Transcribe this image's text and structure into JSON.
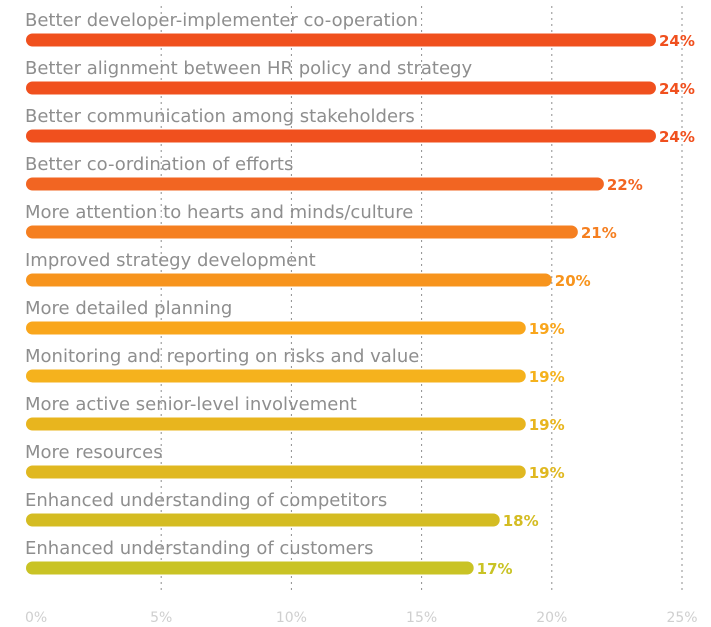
{
  "chart_data": {
    "type": "bar",
    "orientation": "horizontal",
    "categories": [
      "Better developer-implementer co-operation",
      "Better alignment between HR policy and strategy",
      "Better communication among stakeholders",
      "Better co-ordination of efforts",
      "More attention to hearts and minds/culture",
      "Improved strategy development",
      "More detailed planning",
      "Monitoring and reporting on risks and value",
      "More active senior-level involvement",
      "More resources",
      "Enhanced understanding of competitors",
      "Enhanced understanding of customers"
    ],
    "values": [
      24,
      24,
      24,
      22,
      21,
      20,
      19,
      19,
      19,
      19,
      18,
      17
    ],
    "value_labels": [
      "24%",
      "24%",
      "24%",
      "22%",
      "21%",
      "20%",
      "19%",
      "19%",
      "19%",
      "19%",
      "18%",
      "17%"
    ],
    "colors": [
      "#f0501e",
      "#f0501e",
      "#f0501e",
      "#f26522",
      "#f57f20",
      "#f7941d",
      "#f9a61c",
      "#f5b21d",
      "#e8b51e",
      "#e0b820",
      "#d4bc22",
      "#c9c325"
    ],
    "xlim": [
      0,
      25
    ],
    "x_ticks": [
      0,
      5,
      10,
      15,
      20,
      25
    ],
    "x_tick_labels": [
      "0%",
      "5%",
      "10%",
      "15%",
      "20%",
      "25%"
    ],
    "grid": "vertical-dotted",
    "title": "",
    "xlabel": "",
    "ylabel": ""
  }
}
